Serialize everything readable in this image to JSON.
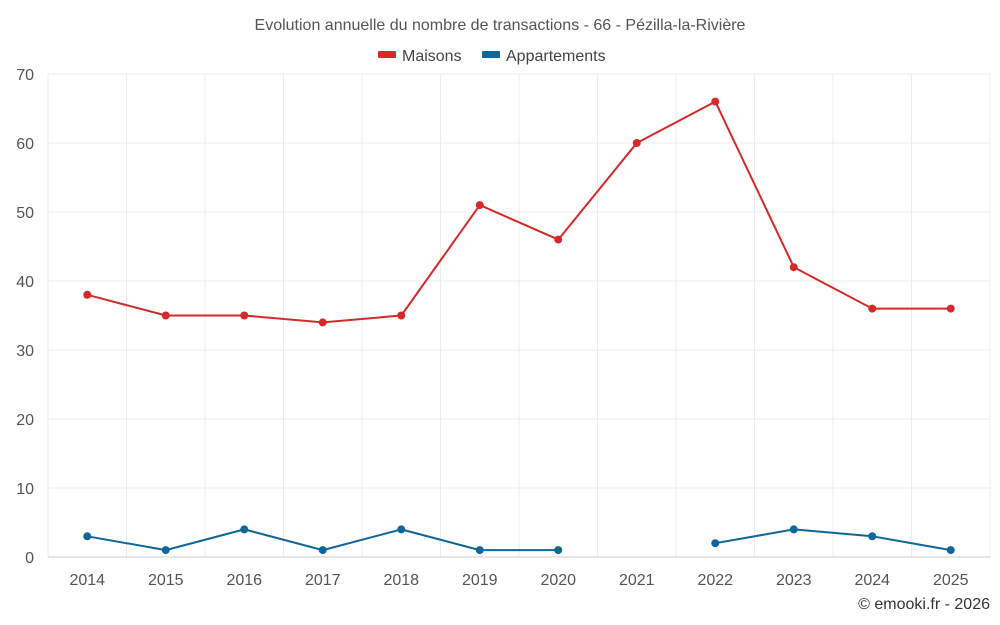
{
  "chart_data": {
    "type": "line",
    "title": "Evolution annuelle du nombre de transactions - 66 - Pézilla-la-Rivière",
    "categories": [
      "2014",
      "2015",
      "2016",
      "2017",
      "2018",
      "2019",
      "2020",
      "2021",
      "2022",
      "2023",
      "2024",
      "2025"
    ],
    "series": [
      {
        "name": "Maisons",
        "color": "#d42a2a",
        "values": [
          38,
          35,
          35,
          34,
          35,
          51,
          46,
          60,
          66,
          42,
          36,
          36
        ]
      },
      {
        "name": "Appartements",
        "color": "#0f6698",
        "values": [
          3,
          1,
          4,
          1,
          4,
          1,
          1,
          null,
          2,
          4,
          3,
          1
        ]
      }
    ],
    "ylim": [
      0,
      70
    ],
    "yticks": [
      0,
      10,
      20,
      30,
      40,
      50,
      60,
      70
    ],
    "xlabel": "",
    "ylabel": "",
    "grid": true,
    "legend": "top-center"
  },
  "credit": "© emooki.fr - 2026"
}
